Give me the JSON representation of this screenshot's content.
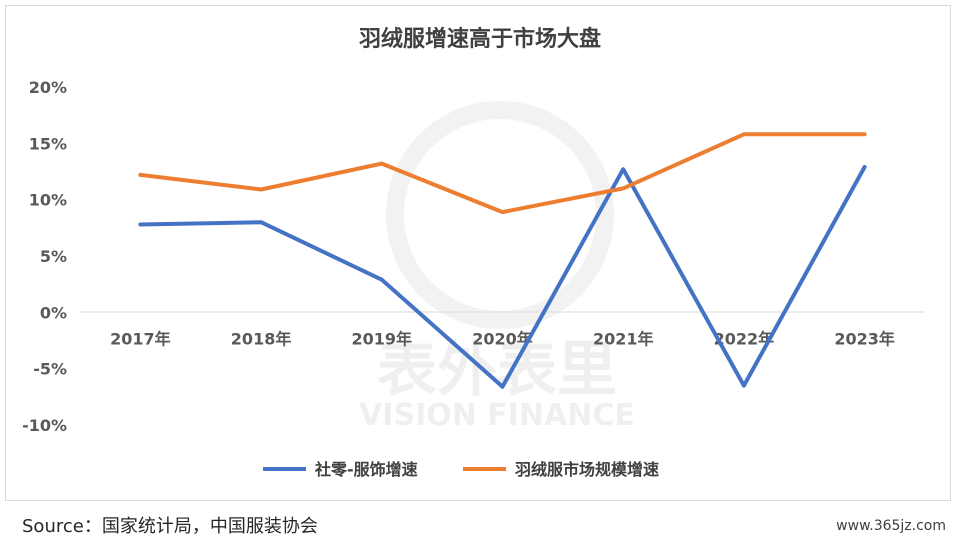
{
  "chart_data": {
    "type": "line",
    "title": "羽绒服增速高于市场大盘",
    "categories": [
      "2017年",
      "2018年",
      "2019年",
      "2020年",
      "2021年",
      "2022年",
      "2023年"
    ],
    "y_ticks": [
      "20%",
      "15%",
      "10%",
      "5%",
      "0%",
      "-5%",
      "-10%"
    ],
    "ylim": [
      -10,
      20
    ],
    "grid": false,
    "legend_position": "bottom",
    "series": [
      {
        "name": "社零-服饰增速",
        "color": "#4472C4",
        "values": [
          7.8,
          8.0,
          2.9,
          -6.6,
          12.7,
          -6.5,
          12.9
        ]
      },
      {
        "name": "羽绒服市场规模增速",
        "color": "#ED7D31",
        "values": [
          12.2,
          10.9,
          13.2,
          8.9,
          11.0,
          15.8,
          15.8
        ]
      }
    ]
  },
  "watermark": {
    "cn": "表外表里",
    "en": "VISION FINANCE"
  },
  "footer": {
    "source": "Source：国家统计局，中国服装协会",
    "credit": "www.365jz.com"
  }
}
